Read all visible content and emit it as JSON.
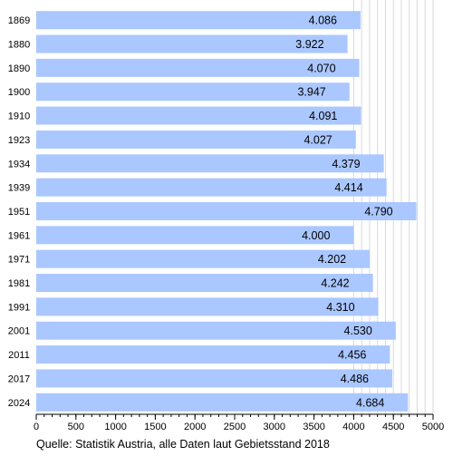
{
  "chart_data": {
    "type": "bar",
    "orientation": "horizontal",
    "categories": [
      "1869",
      "1880",
      "1890",
      "1900",
      "1910",
      "1923",
      "1934",
      "1939",
      "1951",
      "1961",
      "1971",
      "1981",
      "1991",
      "2001",
      "2011",
      "2017",
      "2024"
    ],
    "values": [
      4086,
      3922,
      4070,
      3947,
      4091,
      4027,
      4379,
      4414,
      4790,
      4000,
      4202,
      4242,
      4310,
      4530,
      4456,
      4486,
      4684
    ],
    "value_labels": [
      "4.086",
      "3.922",
      "4.070",
      "3.947",
      "4.091",
      "4.027",
      "4.379",
      "4.414",
      "4.790",
      "4.000",
      "4.202",
      "4.242",
      "4.310",
      "4.530",
      "4.456",
      "4.486",
      "4.684"
    ],
    "x_ticks": [
      "0",
      "500",
      "1000",
      "1500",
      "2000",
      "2500",
      "3000",
      "3500",
      "4000",
      "4500",
      "5000"
    ],
    "xlim": [
      0,
      5000
    ],
    "x_minor_step": 100,
    "grid": "vertical lines every 100 between 4000 and 5000",
    "bar_color": "#aac7ff",
    "grid_color": "#d9d9d9",
    "axis_color": "#000000",
    "title": "",
    "xlabel": "",
    "ylabel": ""
  },
  "source_note": "Quelle: Statistik Austria, alle Daten laut Gebietsstand 2018"
}
